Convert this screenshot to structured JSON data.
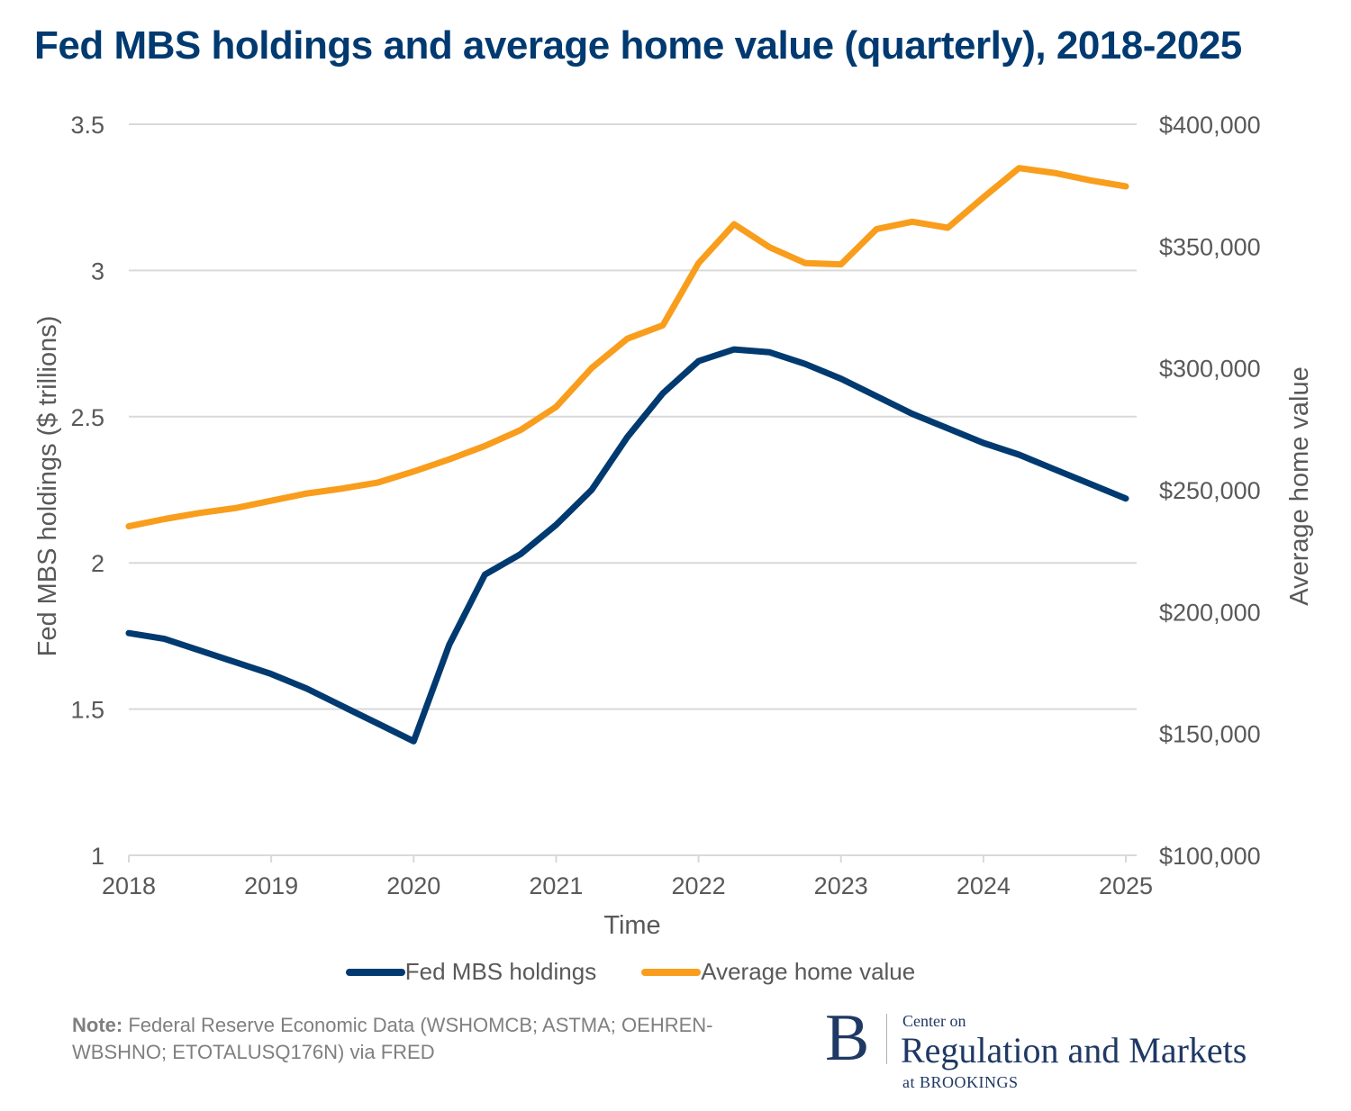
{
  "title": "Fed MBS holdings and average home value (quarterly), 2018-2025",
  "chart_data": {
    "type": "line",
    "title": "Fed MBS holdings and average home value (quarterly), 2018-2025",
    "xlabel": "Time",
    "ylabel": "Fed MBS holdings ($ trillions)",
    "y2label": "Average home value",
    "x": [
      2018.0,
      2018.25,
      2018.5,
      2018.75,
      2019.0,
      2019.25,
      2019.5,
      2019.75,
      2020.0,
      2020.25,
      2020.5,
      2020.75,
      2021.0,
      2021.25,
      2021.5,
      2021.75,
      2022.0,
      2022.25,
      2022.5,
      2022.75,
      2023.0,
      2023.25,
      2023.5,
      2023.75,
      2024.0,
      2024.25,
      2024.5,
      2024.75,
      2025.0
    ],
    "xlim": [
      2018,
      2025
    ],
    "x_ticks": [
      "2018",
      "2019",
      "2020",
      "2021",
      "2022",
      "2023",
      "2024",
      "2025"
    ],
    "ylim": [
      1,
      3.5
    ],
    "y_ticks": [
      "1",
      "1.5",
      "2",
      "2.5",
      "3",
      "3.5"
    ],
    "y2lim": [
      100000,
      400000
    ],
    "y2_ticks": [
      "$100,000",
      "$150,000",
      "$200,000",
      "$250,000",
      "$300,000",
      "$350,000",
      "$400,000"
    ],
    "grid": true,
    "legend_position": "bottom",
    "series": [
      {
        "name": "Fed MBS holdings",
        "axis": "left",
        "color": "#003a70",
        "values": [
          1.76,
          1.74,
          1.7,
          1.66,
          1.62,
          1.57,
          1.51,
          1.45,
          1.39,
          1.72,
          1.96,
          2.03,
          2.13,
          2.25,
          2.43,
          2.58,
          2.69,
          2.73,
          2.72,
          2.68,
          2.63,
          2.57,
          2.51,
          2.46,
          2.41,
          2.37,
          2.32,
          2.27,
          2.22
        ]
      },
      {
        "name": "Average home value",
        "axis": "right",
        "color": "#f99d1c",
        "values": [
          235000,
          238000,
          240500,
          242500,
          245500,
          248500,
          250500,
          253000,
          257500,
          262500,
          268000,
          274500,
          284000,
          300000,
          312000,
          317500,
          343000,
          359000,
          349500,
          343000,
          342500,
          357000,
          360000,
          357500,
          370000,
          382000,
          380000,
          377000,
          374500
        ]
      }
    ]
  },
  "legend": [
    {
      "label": "Fed MBS holdings",
      "color": "#003a70"
    },
    {
      "label": "Average home value",
      "color": "#f99d1c"
    }
  ],
  "note": {
    "label": "Note:",
    "text": " Federal Reserve Economic Data (WSHOMCB; ASTMA; OEHREN-WBSHNO; ETOTALUSQ176N) via FRED"
  },
  "logo": {
    "letter": "B",
    "line1": "Center on",
    "line2": "Regulation and Markets",
    "line3": "at BROOKINGS"
  }
}
